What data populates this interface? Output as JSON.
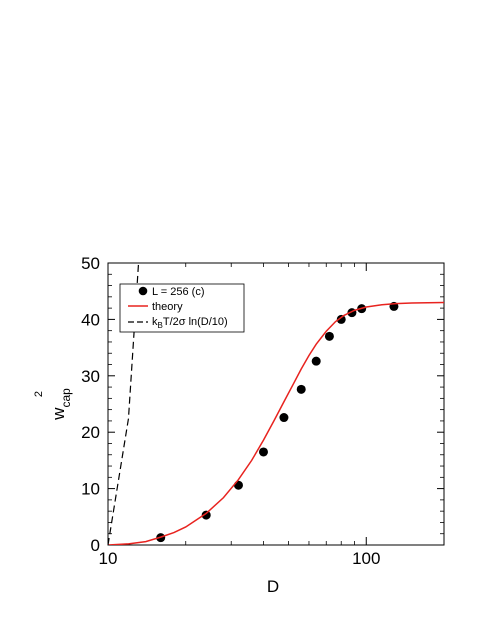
{
  "chart_data": {
    "type": "scatter",
    "xlabel": "D",
    "ylabel": {
      "base": "w",
      "sub": "cap",
      "sup": "2"
    },
    "x_scale": "log",
    "xlim": [
      10,
      200
    ],
    "ylim": [
      0,
      50
    ],
    "x_ticks": [
      {
        "value": 10,
        "label": "10"
      },
      {
        "value": 100,
        "label": "100"
      }
    ],
    "y_ticks": [
      {
        "value": 0,
        "label": "0"
      },
      {
        "value": 10,
        "label": "10"
      },
      {
        "value": 20,
        "label": "20"
      },
      {
        "value": 30,
        "label": "30"
      },
      {
        "value": 40,
        "label": "40"
      },
      {
        "value": 50,
        "label": "50"
      }
    ],
    "grid": false,
    "legend_position": "top-left",
    "series": [
      {
        "name": "L = 256 (c)",
        "kind": "points",
        "color": "#000000",
        "points": [
          {
            "x": 16,
            "y": 1.3
          },
          {
            "x": 24,
            "y": 5.3
          },
          {
            "x": 32,
            "y": 10.6
          },
          {
            "x": 40,
            "y": 16.5
          },
          {
            "x": 48,
            "y": 22.6
          },
          {
            "x": 56,
            "y": 27.6
          },
          {
            "x": 64,
            "y": 32.6
          },
          {
            "x": 72,
            "y": 37.0
          },
          {
            "x": 80,
            "y": 40.0
          },
          {
            "x": 88,
            "y": 41.2
          },
          {
            "x": 96,
            "y": 41.9
          },
          {
            "x": 128,
            "y": 42.3
          }
        ]
      },
      {
        "name": "theory",
        "kind": "line",
        "color": "#e8231f",
        "points": [
          {
            "x": 10,
            "y": 0
          },
          {
            "x": 12,
            "y": 0.2
          },
          {
            "x": 14,
            "y": 0.6
          },
          {
            "x": 16,
            "y": 1.4
          },
          {
            "x": 18,
            "y": 2.2
          },
          {
            "x": 20,
            "y": 3.2
          },
          {
            "x": 24,
            "y": 5.6
          },
          {
            "x": 28,
            "y": 8.4
          },
          {
            "x": 32,
            "y": 11.6
          },
          {
            "x": 36,
            "y": 15.0
          },
          {
            "x": 40,
            "y": 18.6
          },
          {
            "x": 44,
            "y": 22.1
          },
          {
            "x": 48,
            "y": 25.4
          },
          {
            "x": 52,
            "y": 28.4
          },
          {
            "x": 56,
            "y": 31.2
          },
          {
            "x": 60,
            "y": 33.6
          },
          {
            "x": 64,
            "y": 35.6
          },
          {
            "x": 70,
            "y": 37.9
          },
          {
            "x": 76,
            "y": 39.6
          },
          {
            "x": 82,
            "y": 40.7
          },
          {
            "x": 90,
            "y": 41.6
          },
          {
            "x": 100,
            "y": 42.2
          },
          {
            "x": 115,
            "y": 42.6
          },
          {
            "x": 130,
            "y": 42.8
          },
          {
            "x": 150,
            "y": 42.9
          },
          {
            "x": 200,
            "y": 43.0
          }
        ]
      },
      {
        "name": "k_BT/2σ ln(D/10)",
        "label_parts": {
          "k": "k",
          "sub": "B",
          "rest": "T/2σ ln(D/10)"
        },
        "kind": "dashed",
        "color": "#000000",
        "points": [
          {
            "x": 10,
            "y": 0
          },
          {
            "x": 12,
            "y": 22.4
          },
          {
            "x": 13.13,
            "y": 50
          }
        ]
      }
    ]
  }
}
